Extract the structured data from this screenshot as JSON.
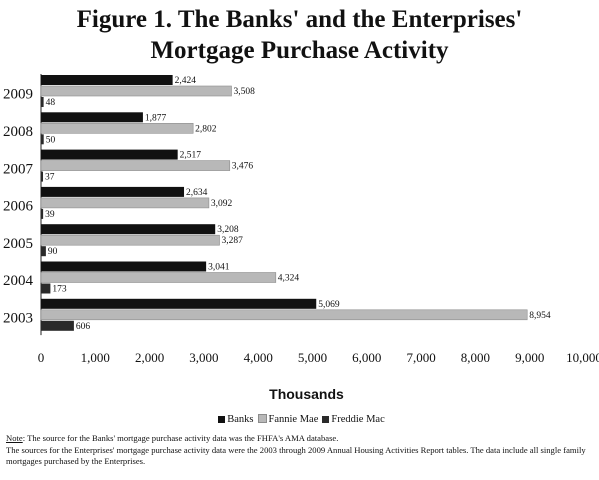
{
  "title_line1": "Figure 1. The Banks' and the Enterprises'",
  "title_line2": "Mortgage Purchase Activity",
  "chart_data": {
    "type": "bar",
    "orientation": "horizontal",
    "categories": [
      "2009",
      "2008",
      "2007",
      "2006",
      "2005",
      "2004",
      "2003"
    ],
    "series": [
      {
        "name": "Banks",
        "color": "#111111",
        "values": [
          2424,
          1877,
          2517,
          2634,
          3208,
          3041,
          5069
        ],
        "labels": [
          "2,424",
          "1,877",
          "2,517",
          "2,634",
          "3,208",
          "3,041",
          "5,069"
        ]
      },
      {
        "name": "Fannie Mae",
        "color": "#b8b8b8",
        "values": [
          3508,
          2802,
          3476,
          3092,
          3287,
          4324,
          8954
        ],
        "labels": [
          "3,508",
          "2,802",
          "3,476",
          "3,092",
          "3,287",
          "4,324",
          "8,954"
        ]
      },
      {
        "name": "Freddie Mac",
        "color": "#2a2a2a",
        "values": [
          48,
          50,
          37,
          39,
          90,
          173,
          606
        ],
        "labels": [
          "48",
          "50",
          "37",
          "39",
          "90",
          "173",
          "606"
        ]
      }
    ],
    "xlabel": "Thousands",
    "xlim": [
      0,
      10000
    ],
    "xticks": [
      0,
      1000,
      2000,
      3000,
      4000,
      5000,
      6000,
      7000,
      8000,
      9000,
      10000
    ],
    "xtick_labels": [
      "0",
      "1,000",
      "2,000",
      "3,000",
      "4,000",
      "5,000",
      "6,000",
      "7,000",
      "8,000",
      "9,000",
      "10,000"
    ],
    "grid": false,
    "legend": "bottom"
  },
  "notes": {
    "note_label": "Note",
    "note_text": ":  The source for the Banks' mortgage purchase activity data was the FHFA's AMA database.",
    "line2": "The sources for the Enterprises' mortgage purchase activity data were the 2003 through 2009 Annual Housing Activities Report tables.  The data include all single family mortgages purchased by the Enterprises."
  }
}
